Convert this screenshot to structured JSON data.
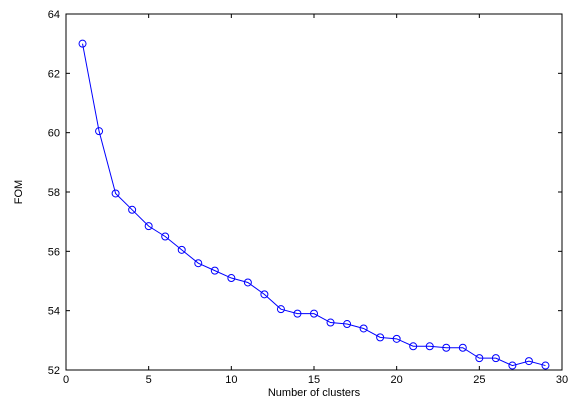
{
  "chart_data": {
    "type": "line",
    "title": "",
    "xlabel": "Number of clusters",
    "ylabel": "FOM",
    "xlim": [
      0,
      30
    ],
    "ylim": [
      52,
      64
    ],
    "xticks": [
      0,
      5,
      10,
      15,
      20,
      25,
      30
    ],
    "yticks": [
      52,
      54,
      56,
      58,
      60,
      62,
      64
    ],
    "grid": false,
    "legend": "none",
    "marker": "circle",
    "series": [
      {
        "color": "#0000ff",
        "x": [
          1,
          2,
          3,
          4,
          5,
          6,
          7,
          8,
          9,
          10,
          11,
          12,
          13,
          14,
          15,
          16,
          17,
          18,
          19,
          20,
          21,
          22,
          23,
          24,
          25,
          26,
          27,
          28,
          29
        ],
        "y": [
          63.0,
          60.05,
          57.95,
          57.4,
          56.85,
          56.5,
          56.05,
          55.6,
          55.35,
          55.1,
          54.95,
          54.55,
          54.05,
          53.9,
          53.9,
          53.6,
          53.55,
          53.4,
          53.1,
          53.05,
          52.8,
          52.8,
          52.75,
          52.75,
          52.4,
          52.4,
          52.15,
          52.3,
          52.15
        ]
      }
    ]
  }
}
